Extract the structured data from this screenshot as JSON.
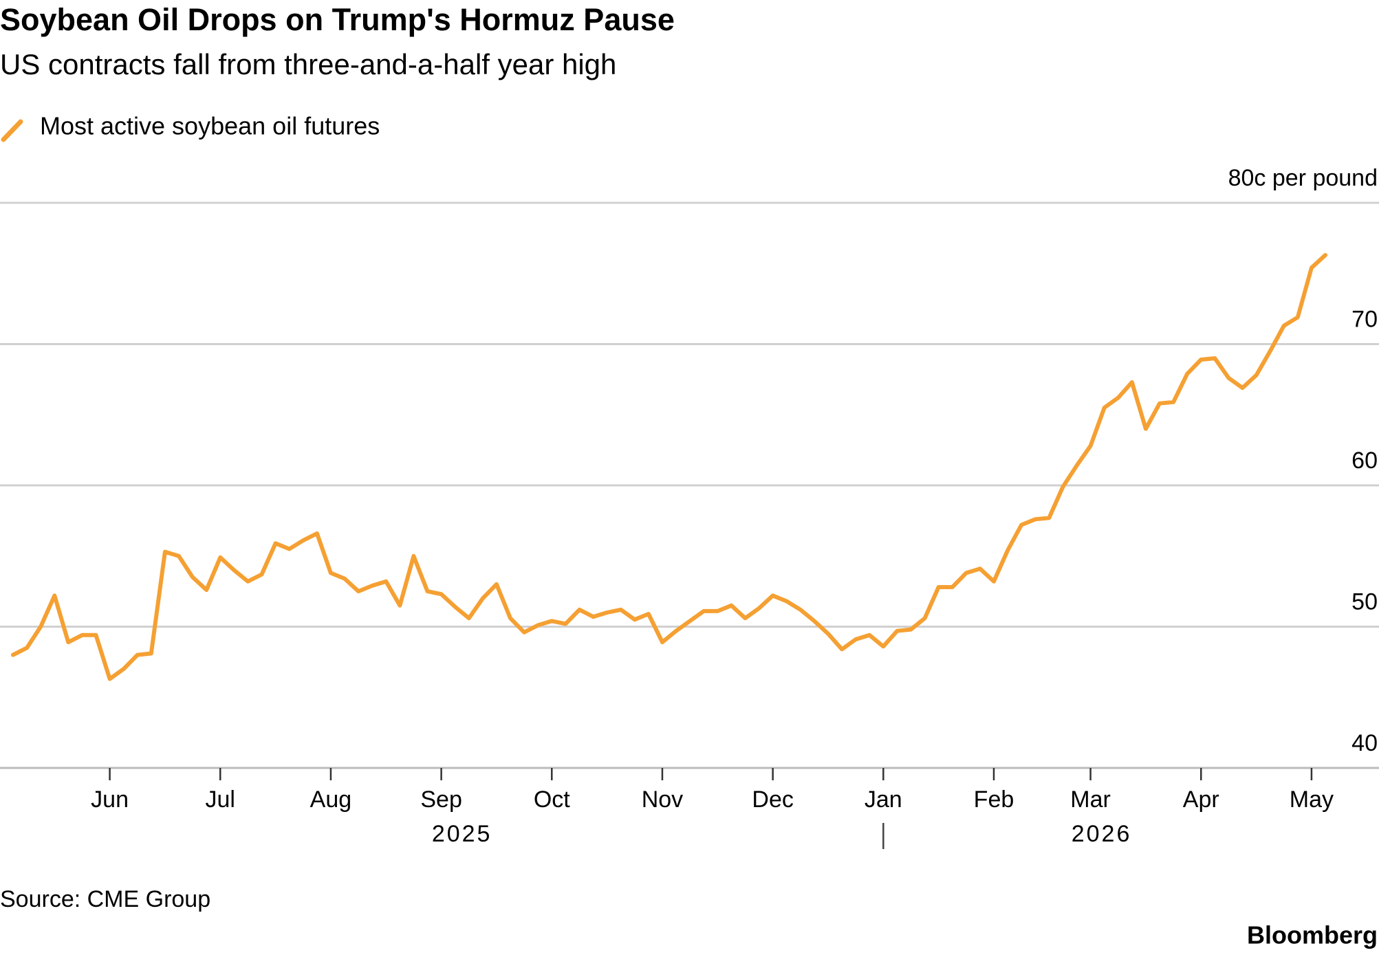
{
  "chart_data": {
    "type": "line",
    "title": "Soybean Oil Drops on Trump's Hormuz Pause",
    "subtitle": "US contracts fall from three-and-a-half year high",
    "source": "Source: CME Group",
    "brand": "Bloomberg",
    "x_groups": [
      "2025",
      "2026"
    ],
    "categories": [
      null,
      null,
      null,
      null,
      null,
      null,
      null,
      "Jun",
      null,
      null,
      null,
      null,
      null,
      null,
      null,
      "Jul",
      null,
      null,
      null,
      null,
      null,
      null,
      null,
      "Aug",
      null,
      null,
      null,
      null,
      null,
      null,
      null,
      "Sep",
      null,
      null,
      null,
      null,
      null,
      null,
      null,
      "Oct",
      null,
      null,
      null,
      null,
      null,
      null,
      null,
      "Nov",
      null,
      null,
      null,
      null,
      null,
      null,
      null,
      "Dec",
      null,
      null,
      null,
      null,
      null,
      null,
      null,
      "Jan",
      null,
      null,
      null,
      null,
      null,
      null,
      null,
      "Feb",
      null,
      null,
      null,
      null,
      null,
      null,
      "Mar",
      null,
      null,
      null,
      null,
      null,
      null,
      null,
      "Apr",
      null,
      null,
      null,
      null,
      null,
      null,
      null,
      "May",
      null
    ],
    "series": [
      {
        "name": "Most active soybean oil futures",
        "color": "#f5a033",
        "values": [
          48.0,
          48.5,
          50.0,
          52.2,
          48.9,
          49.4,
          49.4,
          46.3,
          47.0,
          48.0,
          48.1,
          55.3,
          55.0,
          53.5,
          52.6,
          54.9,
          54.0,
          53.2,
          53.7,
          55.9,
          55.5,
          56.1,
          56.6,
          53.8,
          53.4,
          52.5,
          52.9,
          53.2,
          51.5,
          55.0,
          52.5,
          52.3,
          51.4,
          50.6,
          52.0,
          53.0,
          50.6,
          49.6,
          50.1,
          50.4,
          50.2,
          51.2,
          50.7,
          51.0,
          51.2,
          50.5,
          50.9,
          48.9,
          49.7,
          50.4,
          51.1,
          51.1,
          51.5,
          50.6,
          51.3,
          52.2,
          51.8,
          51.2,
          50.4,
          49.5,
          48.4,
          49.1,
          49.4,
          48.6,
          49.7,
          49.8,
          50.6,
          52.8,
          52.8,
          53.8,
          54.1,
          53.2,
          55.4,
          57.2,
          57.6,
          57.7,
          59.9,
          61.4,
          62.8,
          65.5,
          66.2,
          67.3,
          64.0,
          65.8,
          65.9,
          67.9,
          68.9,
          69.0,
          67.6,
          66.9,
          67.8,
          69.5,
          71.3,
          71.9,
          75.4,
          76.3
        ]
      }
    ],
    "ylim": [
      40,
      80
    ],
    "yticks": [
      40,
      50,
      60,
      70,
      {
        "value": 80,
        "label": "80c per pound"
      }
    ],
    "grid": true
  }
}
